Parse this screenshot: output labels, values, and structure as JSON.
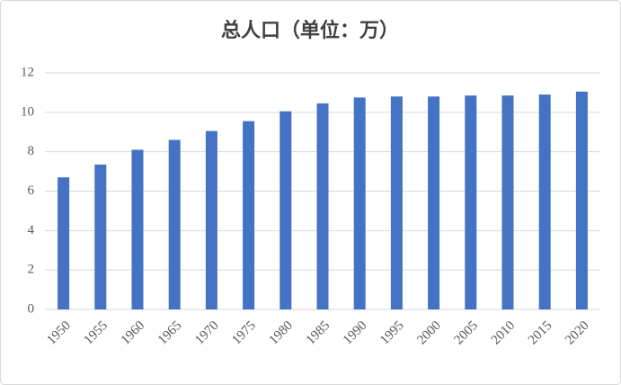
{
  "chart_data": {
    "type": "bar",
    "title": "总人口（单位：万）",
    "categories": [
      "1950",
      "1955",
      "1960",
      "1965",
      "1970",
      "1975",
      "1980",
      "1985",
      "1990",
      "1995",
      "2000",
      "2005",
      "2010",
      "2015",
      "2020"
    ],
    "values": [
      6.7,
      7.35,
      8.1,
      8.6,
      9.05,
      9.55,
      10.05,
      10.45,
      10.75,
      10.8,
      10.8,
      10.85,
      10.85,
      10.9,
      11.05
    ],
    "color": "#4472c4",
    "ylim": [
      0,
      12
    ],
    "yticks": [
      0,
      2,
      4,
      6,
      8,
      10,
      12
    ],
    "grid": true
  }
}
